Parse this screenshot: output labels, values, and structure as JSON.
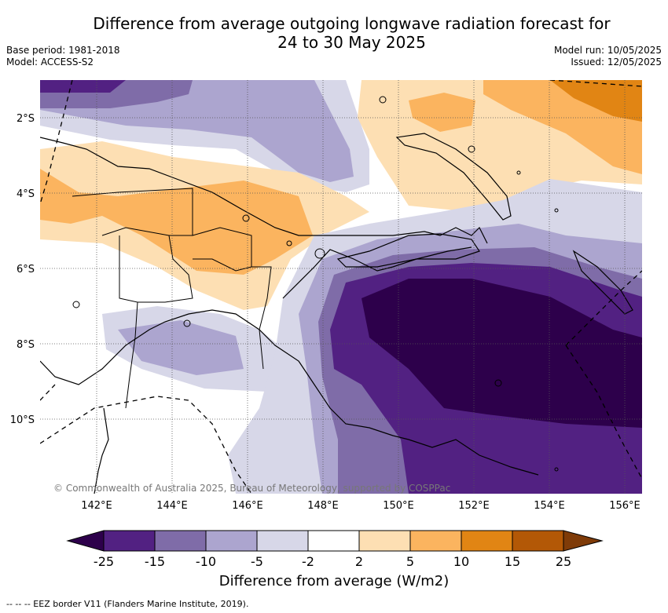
{
  "title_line1": "Difference from average outgoing longwave radiation forecast for",
  "title_line2": "24 to 30 May 2025",
  "base_period": "Base period: 1981-2018",
  "model": "Model: ACCESS-S2",
  "model_run": "Model run: 10/05/2025",
  "issued": "Issued: 12/05/2025",
  "copyright": "© Commonwealth of Australia 2025, Bureau of Meteorology, supported by COSPPac",
  "lat_labels": [
    "2°S",
    "4°S",
    "6°S",
    "8°S",
    "10°S"
  ],
  "lon_labels": [
    "142°E",
    "144°E",
    "146°E",
    "148°E",
    "150°E",
    "152°E",
    "154°E",
    "156°E"
  ],
  "colorbar": {
    "ticks": [
      "-25",
      "-15",
      "-10",
      "-5",
      "-2",
      "2",
      "5",
      "10",
      "15",
      "25"
    ],
    "colors": [
      "#522182",
      "#7f6ca8",
      "#aca5cf",
      "#d7d7e8",
      "#ffffff",
      "#fddfb3",
      "#fbb45f",
      "#e18514",
      "#b35806"
    ],
    "under_color": "#2d004b",
    "over_color": "#7f3b08",
    "label": "Difference from average (W/m2)"
  },
  "footnote": "--  --  -- EEZ border V11 (Flanders Marine Institute, 2019)."
}
